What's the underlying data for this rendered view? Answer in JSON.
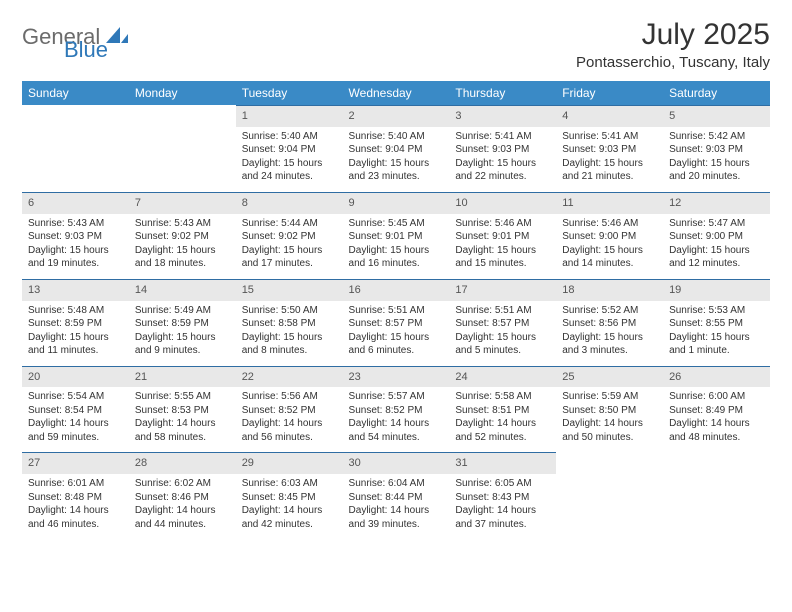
{
  "brand": {
    "text1": "General",
    "text2": "Blue"
  },
  "title": "July 2025",
  "location": "Pontasserchio, Tuscany, Italy",
  "colors": {
    "header_bg": "#3a8ac6",
    "header_text": "#ffffff",
    "daynum_bg": "#e8e8e8",
    "daynum_text": "#555555",
    "border_top": "#2f6da3",
    "body_text": "#333333",
    "logo_gray": "#6b6b6b",
    "logo_blue": "#2f78b8",
    "page_bg": "#ffffff"
  },
  "dow": [
    "Sunday",
    "Monday",
    "Tuesday",
    "Wednesday",
    "Thursday",
    "Friday",
    "Saturday"
  ],
  "weeks": [
    [
      null,
      null,
      {
        "n": "1",
        "l": [
          "Sunrise: 5:40 AM",
          "Sunset: 9:04 PM",
          "Daylight: 15 hours",
          "and 24 minutes."
        ]
      },
      {
        "n": "2",
        "l": [
          "Sunrise: 5:40 AM",
          "Sunset: 9:04 PM",
          "Daylight: 15 hours",
          "and 23 minutes."
        ]
      },
      {
        "n": "3",
        "l": [
          "Sunrise: 5:41 AM",
          "Sunset: 9:03 PM",
          "Daylight: 15 hours",
          "and 22 minutes."
        ]
      },
      {
        "n": "4",
        "l": [
          "Sunrise: 5:41 AM",
          "Sunset: 9:03 PM",
          "Daylight: 15 hours",
          "and 21 minutes."
        ]
      },
      {
        "n": "5",
        "l": [
          "Sunrise: 5:42 AM",
          "Sunset: 9:03 PM",
          "Daylight: 15 hours",
          "and 20 minutes."
        ]
      }
    ],
    [
      {
        "n": "6",
        "l": [
          "Sunrise: 5:43 AM",
          "Sunset: 9:03 PM",
          "Daylight: 15 hours",
          "and 19 minutes."
        ]
      },
      {
        "n": "7",
        "l": [
          "Sunrise: 5:43 AM",
          "Sunset: 9:02 PM",
          "Daylight: 15 hours",
          "and 18 minutes."
        ]
      },
      {
        "n": "8",
        "l": [
          "Sunrise: 5:44 AM",
          "Sunset: 9:02 PM",
          "Daylight: 15 hours",
          "and 17 minutes."
        ]
      },
      {
        "n": "9",
        "l": [
          "Sunrise: 5:45 AM",
          "Sunset: 9:01 PM",
          "Daylight: 15 hours",
          "and 16 minutes."
        ]
      },
      {
        "n": "10",
        "l": [
          "Sunrise: 5:46 AM",
          "Sunset: 9:01 PM",
          "Daylight: 15 hours",
          "and 15 minutes."
        ]
      },
      {
        "n": "11",
        "l": [
          "Sunrise: 5:46 AM",
          "Sunset: 9:00 PM",
          "Daylight: 15 hours",
          "and 14 minutes."
        ]
      },
      {
        "n": "12",
        "l": [
          "Sunrise: 5:47 AM",
          "Sunset: 9:00 PM",
          "Daylight: 15 hours",
          "and 12 minutes."
        ]
      }
    ],
    [
      {
        "n": "13",
        "l": [
          "Sunrise: 5:48 AM",
          "Sunset: 8:59 PM",
          "Daylight: 15 hours",
          "and 11 minutes."
        ]
      },
      {
        "n": "14",
        "l": [
          "Sunrise: 5:49 AM",
          "Sunset: 8:59 PM",
          "Daylight: 15 hours",
          "and 9 minutes."
        ]
      },
      {
        "n": "15",
        "l": [
          "Sunrise: 5:50 AM",
          "Sunset: 8:58 PM",
          "Daylight: 15 hours",
          "and 8 minutes."
        ]
      },
      {
        "n": "16",
        "l": [
          "Sunrise: 5:51 AM",
          "Sunset: 8:57 PM",
          "Daylight: 15 hours",
          "and 6 minutes."
        ]
      },
      {
        "n": "17",
        "l": [
          "Sunrise: 5:51 AM",
          "Sunset: 8:57 PM",
          "Daylight: 15 hours",
          "and 5 minutes."
        ]
      },
      {
        "n": "18",
        "l": [
          "Sunrise: 5:52 AM",
          "Sunset: 8:56 PM",
          "Daylight: 15 hours",
          "and 3 minutes."
        ]
      },
      {
        "n": "19",
        "l": [
          "Sunrise: 5:53 AM",
          "Sunset: 8:55 PM",
          "Daylight: 15 hours",
          "and 1 minute."
        ]
      }
    ],
    [
      {
        "n": "20",
        "l": [
          "Sunrise: 5:54 AM",
          "Sunset: 8:54 PM",
          "Daylight: 14 hours",
          "and 59 minutes."
        ]
      },
      {
        "n": "21",
        "l": [
          "Sunrise: 5:55 AM",
          "Sunset: 8:53 PM",
          "Daylight: 14 hours",
          "and 58 minutes."
        ]
      },
      {
        "n": "22",
        "l": [
          "Sunrise: 5:56 AM",
          "Sunset: 8:52 PM",
          "Daylight: 14 hours",
          "and 56 minutes."
        ]
      },
      {
        "n": "23",
        "l": [
          "Sunrise: 5:57 AM",
          "Sunset: 8:52 PM",
          "Daylight: 14 hours",
          "and 54 minutes."
        ]
      },
      {
        "n": "24",
        "l": [
          "Sunrise: 5:58 AM",
          "Sunset: 8:51 PM",
          "Daylight: 14 hours",
          "and 52 minutes."
        ]
      },
      {
        "n": "25",
        "l": [
          "Sunrise: 5:59 AM",
          "Sunset: 8:50 PM",
          "Daylight: 14 hours",
          "and 50 minutes."
        ]
      },
      {
        "n": "26",
        "l": [
          "Sunrise: 6:00 AM",
          "Sunset: 8:49 PM",
          "Daylight: 14 hours",
          "and 48 minutes."
        ]
      }
    ],
    [
      {
        "n": "27",
        "l": [
          "Sunrise: 6:01 AM",
          "Sunset: 8:48 PM",
          "Daylight: 14 hours",
          "and 46 minutes."
        ]
      },
      {
        "n": "28",
        "l": [
          "Sunrise: 6:02 AM",
          "Sunset: 8:46 PM",
          "Daylight: 14 hours",
          "and 44 minutes."
        ]
      },
      {
        "n": "29",
        "l": [
          "Sunrise: 6:03 AM",
          "Sunset: 8:45 PM",
          "Daylight: 14 hours",
          "and 42 minutes."
        ]
      },
      {
        "n": "30",
        "l": [
          "Sunrise: 6:04 AM",
          "Sunset: 8:44 PM",
          "Daylight: 14 hours",
          "and 39 minutes."
        ]
      },
      {
        "n": "31",
        "l": [
          "Sunrise: 6:05 AM",
          "Sunset: 8:43 PM",
          "Daylight: 14 hours",
          "and 37 minutes."
        ]
      },
      null,
      null
    ]
  ]
}
